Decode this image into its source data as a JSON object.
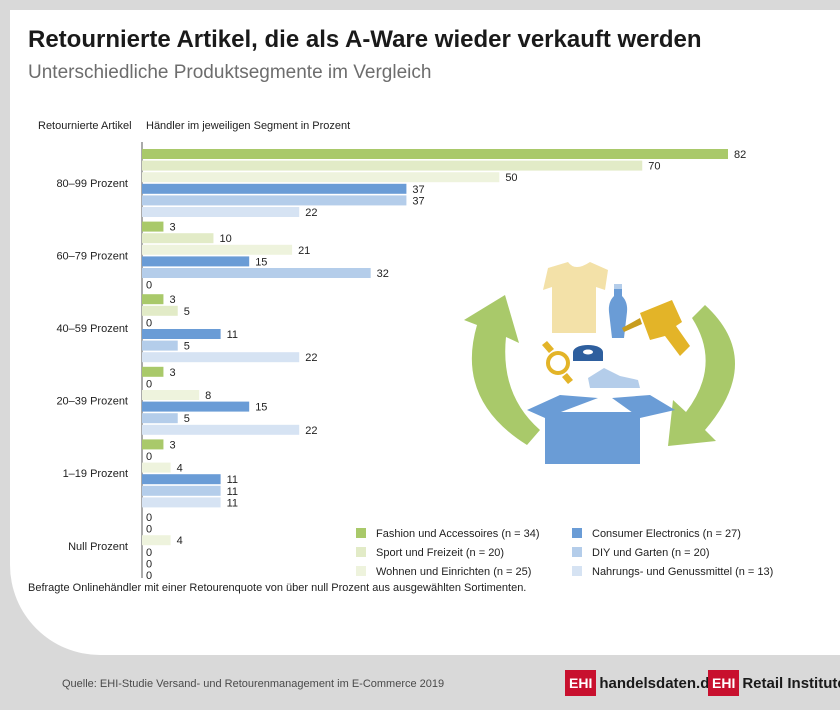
{
  "title": "Retournierte Artikel, die als A-Ware wieder verkauft werden",
  "subtitle": "Unterschiedliche Produktsegmente im Vergleich",
  "col_header_left": "Retournierte Artikel",
  "col_header_right": "Händler im jeweiligen Segment in Prozent",
  "footnote": "Befragte Onlinehändler mit einer Retourenquote von über null Prozent aus ausgewählten Sortimenten.",
  "source": "Quelle: EHI-Studie Versand- und Retourenmanagement im E-Commerce 2019",
  "logo1": {
    "box": "EHI",
    "text": "handelsdaten.de"
  },
  "logo2": {
    "box": "EHI",
    "text": "Retail Institute",
    "mark": "®"
  },
  "colors": {
    "Fashion und Accessoires (n = 34)": "#a9c96a",
    "Sport und Freizeit (n = 20)": "#e2ebc7",
    "Wohnen und Einrichten (n = 25)": "#eef3dd",
    "Consumer Electronics (n = 27)": "#6a9cd6",
    "DIY und Garten (n = 20)": "#b4cdea",
    "Nahrungs- und Genussmittel (n = 13)": "#d6e3f3"
  },
  "chart_data": {
    "type": "bar",
    "orientation": "horizontal",
    "categories": [
      "80–99 Prozent",
      "60–79 Prozent",
      "40–59 Prozent",
      "20–39 Prozent",
      "1–19 Prozent",
      "Null Prozent"
    ],
    "series": [
      {
        "name": "Fashion und Accessoires (n = 34)",
        "values": [
          82,
          3,
          3,
          3,
          3,
          0
        ]
      },
      {
        "name": "Sport und Freizeit (n = 20)",
        "values": [
          70,
          10,
          5,
          0,
          0,
          0
        ]
      },
      {
        "name": "Wohnen und Einrichten (n = 25)",
        "values": [
          50,
          21,
          0,
          8,
          4,
          4
        ]
      },
      {
        "name": "Consumer Electronics (n = 27)",
        "values": [
          37,
          15,
          11,
          15,
          11,
          0
        ]
      },
      {
        "name": "DIY und Garten (n = 20)",
        "values": [
          37,
          32,
          5,
          5,
          11,
          0
        ]
      },
      {
        "name": "Nahrungs- und Genussmittel (n = 13)",
        "values": [
          22,
          0,
          22,
          22,
          11,
          0
        ]
      }
    ],
    "xlim": [
      0,
      82
    ],
    "legend": "bottom-right"
  }
}
